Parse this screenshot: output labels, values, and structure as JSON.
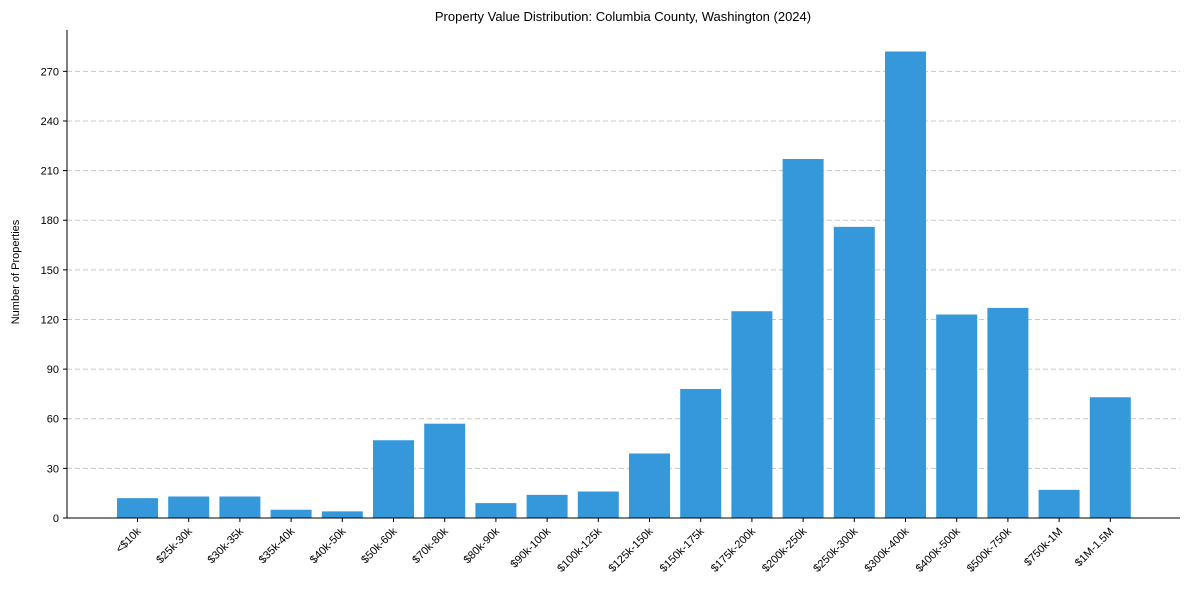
{
  "chart_data": {
    "type": "bar",
    "title": "Property Value Distribution: Columbia County, Washington (2024)",
    "xlabel": "",
    "ylabel": "Number of Properties",
    "categories": [
      "<$10k",
      "$25k-30k",
      "$30k-35k",
      "$35k-40k",
      "$40k-50k",
      "$50k-60k",
      "$70k-80k",
      "$80k-90k",
      "$90k-100k",
      "$100k-125k",
      "$125k-150k",
      "$150k-175k",
      "$175k-200k",
      "$200k-250k",
      "$250k-300k",
      "$300k-400k",
      "$400k-500k",
      "$500k-750k",
      "$750k-1M",
      "$1M-1.5M"
    ],
    "values": [
      12,
      13,
      13,
      5,
      4,
      47,
      57,
      9,
      14,
      16,
      39,
      78,
      125,
      217,
      176,
      282,
      123,
      127,
      17,
      73
    ],
    "ylim": [
      0,
      295
    ],
    "yticks": [
      0,
      30,
      60,
      90,
      120,
      150,
      180,
      210,
      240,
      270
    ],
    "grid": "y-dashed",
    "bar_color": "#3498db"
  }
}
